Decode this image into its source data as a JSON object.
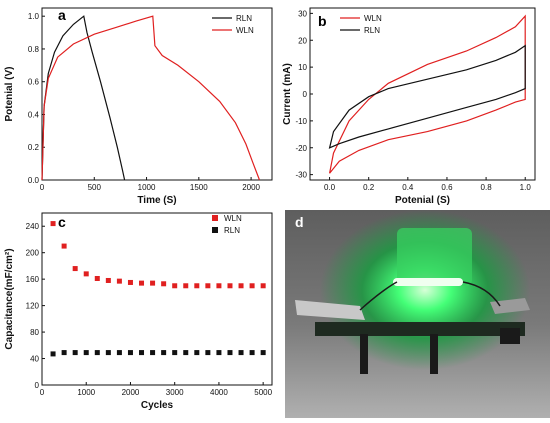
{
  "panels": {
    "a": {
      "label": "a",
      "chart_data": {
        "type": "line",
        "xlabel": "Time (S)",
        "ylabel": "Potenial (V)",
        "xlim": [
          0,
          2200
        ],
        "ylim": [
          0,
          1.05
        ],
        "xticks": [
          "0",
          "500",
          "1000",
          "1500",
          "2000"
        ],
        "yticks": [
          "0.0",
          "0.2",
          "0.4",
          "0.6",
          "0.8",
          "1.0"
        ],
        "legend": "top-right",
        "series": [
          {
            "name": "RLN",
            "color": "#111111",
            "x": [
              0,
              20,
              60,
              120,
              200,
              300,
              380,
              400,
              430,
              480,
              560,
              650,
              720,
              770,
              790
            ],
            "y": [
              0.0,
              0.45,
              0.65,
              0.78,
              0.88,
              0.95,
              0.99,
              1.0,
              0.9,
              0.78,
              0.6,
              0.38,
              0.2,
              0.06,
              0.0
            ]
          },
          {
            "name": "WLN",
            "color": "#e02020",
            "x": [
              0,
              20,
              60,
              150,
              300,
              500,
              700,
              900,
              1060,
              1080,
              1150,
              1300,
              1500,
              1700,
              1850,
              1950,
              2020,
              2080
            ],
            "y": [
              0.0,
              0.45,
              0.62,
              0.75,
              0.83,
              0.89,
              0.93,
              0.97,
              1.0,
              0.82,
              0.76,
              0.7,
              0.6,
              0.48,
              0.35,
              0.22,
              0.1,
              0.0
            ]
          }
        ]
      }
    },
    "b": {
      "label": "b",
      "chart_data": {
        "type": "line",
        "xlabel": "Potenial (S)",
        "ylabel": "Current (mA)",
        "xlim": [
          -0.1,
          1.05
        ],
        "ylim": [
          -32,
          32
        ],
        "xticks": [
          "0.0",
          "0.2",
          "0.4",
          "0.6",
          "0.8",
          "1.0"
        ],
        "yticks": [
          "-30",
          "-20",
          "-10",
          "0",
          "10",
          "20",
          "30"
        ],
        "legend": "top-left",
        "series": [
          {
            "name": "WLN",
            "color": "#e02020",
            "x": [
              0.0,
              0.02,
              0.1,
              0.2,
              0.3,
              0.5,
              0.7,
              0.85,
              0.95,
              1.0,
              1.0,
              0.95,
              0.85,
              0.7,
              0.5,
              0.3,
              0.15,
              0.05,
              0.0
            ],
            "y": [
              -29.5,
              -22,
              -10,
              -2,
              4,
              11,
              16,
              21,
              25,
              29,
              -2,
              -3,
              -6,
              -10,
              -14,
              -17,
              -21,
              -25,
              -29.5
            ]
          },
          {
            "name": "RLN",
            "color": "#111111",
            "x": [
              0.0,
              0.02,
              0.1,
              0.2,
              0.3,
              0.5,
              0.7,
              0.85,
              0.95,
              1.0,
              1.0,
              0.95,
              0.85,
              0.7,
              0.5,
              0.3,
              0.15,
              0.05,
              0.0
            ],
            "y": [
              -20,
              -14,
              -6,
              -1,
              2,
              5.5,
              9,
              12.5,
              15.5,
              18,
              2,
              0.5,
              -2,
              -5,
              -9,
              -13,
              -16,
              -18.5,
              -20
            ]
          }
        ]
      }
    },
    "c": {
      "label": "c",
      "chart_data": {
        "type": "scatter",
        "xlabel": "Cycles",
        "ylabel": "Capacitance(mF/cm²)",
        "xlim": [
          0,
          5200
        ],
        "ylim": [
          0,
          260
        ],
        "xticks": [
          "0",
          "1000",
          "2000",
          "3000",
          "4000",
          "5000"
        ],
        "yticks": [
          "0",
          "40",
          "80",
          "120",
          "160",
          "200",
          "240"
        ],
        "legend": "top-right",
        "series": [
          {
            "name": "WLN",
            "color": "#e02020",
            "x": [
              250,
              500,
              750,
              1000,
              1250,
              1500,
              1750,
              2000,
              2250,
              2500,
              2750,
              3000,
              3250,
              3500,
              3750,
              4000,
              4250,
              4500,
              4750,
              5000
            ],
            "y": [
              244,
              210,
              176,
              168,
              161,
              158,
              157,
              155,
              154,
              154,
              153,
              150,
              150,
              150,
              150,
              150,
              150,
              150,
              150,
              150
            ]
          },
          {
            "name": "RLN",
            "color": "#111111",
            "x": [
              250,
              500,
              750,
              1000,
              1250,
              1500,
              1750,
              2000,
              2250,
              2500,
              2750,
              3000,
              3250,
              3500,
              3750,
              4000,
              4250,
              4500,
              4750,
              5000
            ],
            "y": [
              47,
              49,
              49,
              49,
              49,
              49,
              49,
              49,
              49,
              49,
              49,
              49,
              49,
              49,
              49,
              49,
              49,
              49,
              49,
              49
            ]
          }
        ]
      }
    },
    "d": {
      "label": "d",
      "colors": {
        "background": "#8a8a8a",
        "glow": "#33ff66",
        "wire": "#1a1a1a"
      }
    }
  }
}
